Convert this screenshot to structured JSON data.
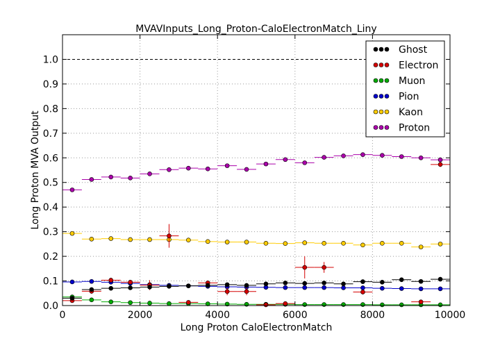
{
  "chart_data": {
    "type": "scatter",
    "title": "MVAVInputs_Long_Proton-CaloElectronMatch_Liny",
    "xlabel": "Long Proton CaloElectronMatch",
    "ylabel": "Long Proton MVA Output",
    "xlim": [
      0,
      10000
    ],
    "ylim": [
      0.0,
      1.1
    ],
    "xticks": [
      "0",
      "2000",
      "4000",
      "6000",
      "8000",
      "10000"
    ],
    "yticks": [
      "0.0",
      "0.1",
      "0.2",
      "0.3",
      "0.4",
      "0.5",
      "0.6",
      "0.7",
      "0.8",
      "0.9",
      "1.0"
    ],
    "grid": true,
    "reference_line": 1.0,
    "legend_position": "top-right",
    "bin_centers": [
      250,
      750,
      1250,
      1750,
      2250,
      2750,
      3250,
      3750,
      4250,
      4750,
      5250,
      5750,
      6250,
      6750,
      7250,
      7750,
      8250,
      8750,
      9250,
      9750
    ],
    "series": [
      {
        "name": "Ghost",
        "color": "#000000",
        "values": [
          0.03,
          0.065,
          0.07,
          0.072,
          0.075,
          0.078,
          0.08,
          0.082,
          0.085,
          0.082,
          0.088,
          0.092,
          0.09,
          0.092,
          0.088,
          0.097,
          0.095,
          0.105,
          0.098,
          0.107
        ]
      },
      {
        "name": "Electron",
        "color": "#d40000",
        "points": [
          [
            250,
            0.02
          ],
          [
            750,
            0.058
          ],
          [
            1250,
            0.103
          ],
          [
            1750,
            0.095
          ],
          [
            2250,
            0.083
          ],
          [
            2750,
            0.283
          ],
          [
            3250,
            0.013
          ],
          [
            3750,
            0.092
          ],
          [
            4250,
            0.057
          ],
          [
            4750,
            0.057
          ],
          [
            5250,
            0.003
          ],
          [
            5750,
            0.008
          ],
          [
            6250,
            0.155
          ],
          [
            6750,
            0.155
          ],
          [
            7750,
            0.055
          ],
          [
            9250,
            0.015
          ],
          [
            9750,
            0.573
          ]
        ],
        "errors": [
          0.005,
          0.01,
          0.01,
          0.008,
          0.02,
          0.048,
          0.008,
          0.01,
          0.015,
          0.015,
          0.005,
          0.008,
          0.045,
          0.022,
          0.01,
          0.008,
          0.01
        ]
      },
      {
        "name": "Muon",
        "color": "#00aa00",
        "values": [
          0.035,
          0.023,
          0.015,
          0.012,
          0.01,
          0.008,
          0.008,
          0.007,
          0.006,
          0.005,
          0.005,
          0.005,
          0.004,
          0.004,
          0.004,
          0.004,
          0.003,
          0.003,
          0.003,
          0.003
        ]
      },
      {
        "name": "Pion",
        "color": "#0000cc",
        "values": [
          0.096,
          0.098,
          0.095,
          0.09,
          0.085,
          0.082,
          0.08,
          0.078,
          0.076,
          0.075,
          0.074,
          0.073,
          0.073,
          0.073,
          0.072,
          0.072,
          0.07,
          0.069,
          0.068,
          0.068
        ]
      },
      {
        "name": "Kaon",
        "color": "#ffcc00",
        "values": [
          0.293,
          0.27,
          0.272,
          0.268,
          0.268,
          0.268,
          0.266,
          0.26,
          0.258,
          0.258,
          0.253,
          0.252,
          0.255,
          0.253,
          0.253,
          0.246,
          0.253,
          0.253,
          0.238,
          0.25
        ]
      },
      {
        "name": "Proton",
        "color": "#aa00aa",
        "values": [
          0.47,
          0.512,
          0.522,
          0.518,
          0.535,
          0.552,
          0.558,
          0.555,
          0.568,
          0.553,
          0.575,
          0.593,
          0.58,
          0.602,
          0.608,
          0.613,
          0.61,
          0.605,
          0.6,
          0.592
        ]
      }
    ]
  }
}
